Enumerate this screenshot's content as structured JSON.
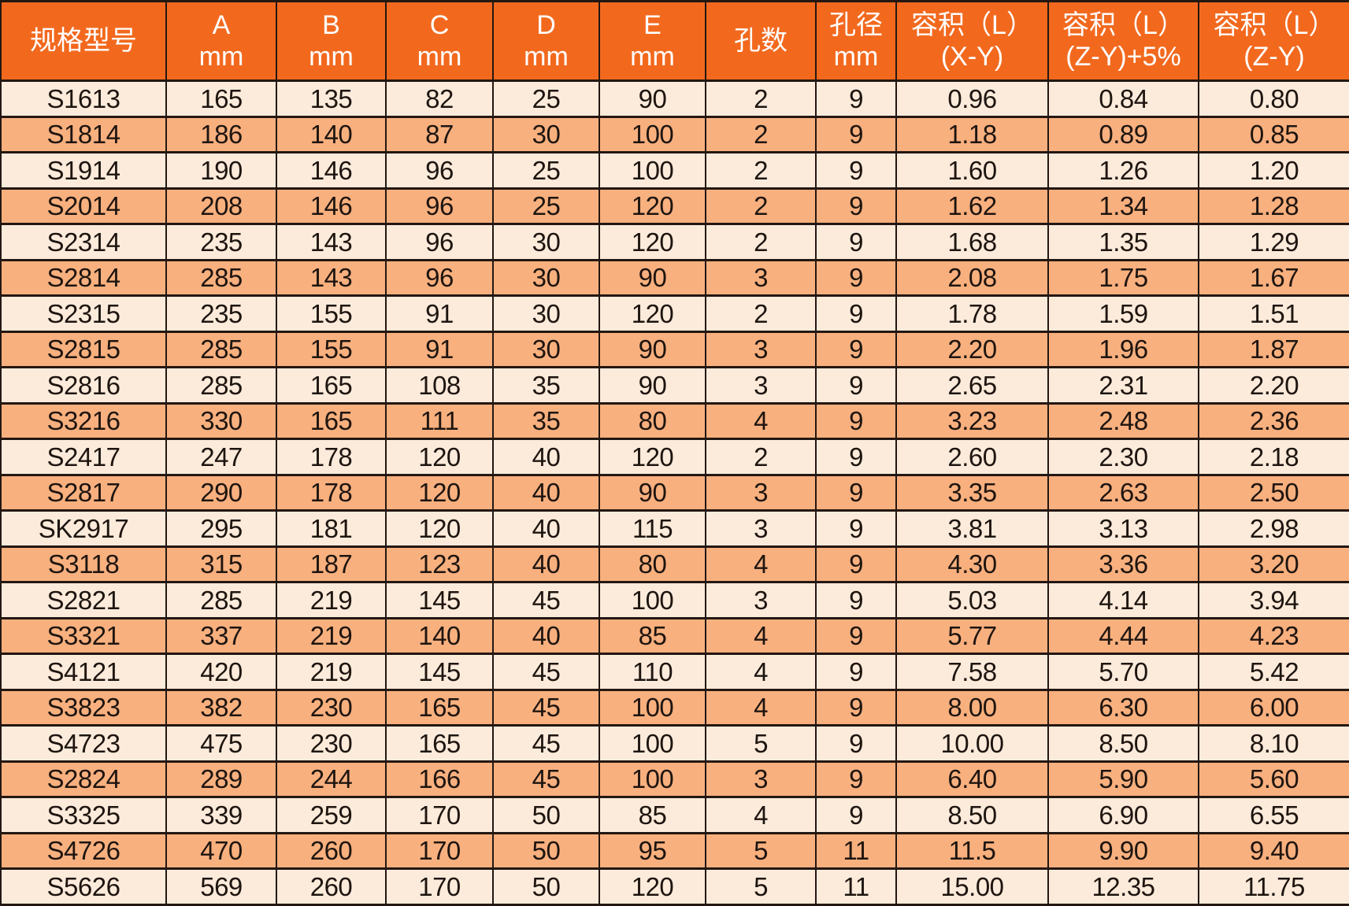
{
  "chart_data": {
    "type": "table",
    "columns": [
      {
        "id": "model",
        "lines": [
          "规格型号"
        ]
      },
      {
        "id": "a_mm",
        "lines": [
          "A",
          "mm"
        ]
      },
      {
        "id": "b_mm",
        "lines": [
          "B",
          "mm"
        ]
      },
      {
        "id": "c_mm",
        "lines": [
          "C",
          "mm"
        ]
      },
      {
        "id": "d_mm",
        "lines": [
          "D",
          "mm"
        ]
      },
      {
        "id": "e_mm",
        "lines": [
          "E",
          "mm"
        ]
      },
      {
        "id": "hole_count",
        "lines": [
          "孔数"
        ]
      },
      {
        "id": "hole_diameter_mm",
        "lines": [
          "孔径",
          "mm"
        ]
      },
      {
        "id": "volume_l_xy",
        "lines": [
          "容积（L）",
          "(X-Y)"
        ]
      },
      {
        "id": "volume_l_zy_plus5",
        "lines": [
          "容积（L）",
          "(Z-Y)+5%"
        ]
      },
      {
        "id": "volume_l_zy",
        "lines": [
          "容积（L）",
          "(Z-Y)"
        ]
      }
    ],
    "rows": [
      [
        "S1613",
        "165",
        "135",
        "82",
        "25",
        "90",
        "2",
        "9",
        "0.96",
        "0.84",
        "0.80"
      ],
      [
        "S1814",
        "186",
        "140",
        "87",
        "30",
        "100",
        "2",
        "9",
        "1.18",
        "0.89",
        "0.85"
      ],
      [
        "S1914",
        "190",
        "146",
        "96",
        "25",
        "100",
        "2",
        "9",
        "1.60",
        "1.26",
        "1.20"
      ],
      [
        "S2014",
        "208",
        "146",
        "96",
        "25",
        "120",
        "2",
        "9",
        "1.62",
        "1.34",
        "1.28"
      ],
      [
        "S2314",
        "235",
        "143",
        "96",
        "30",
        "120",
        "2",
        "9",
        "1.68",
        "1.35",
        "1.29"
      ],
      [
        "S2814",
        "285",
        "143",
        "96",
        "30",
        "90",
        "3",
        "9",
        "2.08",
        "1.75",
        "1.67"
      ],
      [
        "S2315",
        "235",
        "155",
        "91",
        "30",
        "120",
        "2",
        "9",
        "1.78",
        "1.59",
        "1.51"
      ],
      [
        "S2815",
        "285",
        "155",
        "91",
        "30",
        "90",
        "3",
        "9",
        "2.20",
        "1.96",
        "1.87"
      ],
      [
        "S2816",
        "285",
        "165",
        "108",
        "35",
        "90",
        "3",
        "9",
        "2.65",
        "2.31",
        "2.20"
      ],
      [
        "S3216",
        "330",
        "165",
        "111",
        "35",
        "80",
        "4",
        "9",
        "3.23",
        "2.48",
        "2.36"
      ],
      [
        "S2417",
        "247",
        "178",
        "120",
        "40",
        "120",
        "2",
        "9",
        "2.60",
        "2.30",
        "2.18"
      ],
      [
        "S2817",
        "290",
        "178",
        "120",
        "40",
        "90",
        "3",
        "9",
        "3.35",
        "2.63",
        "2.50"
      ],
      [
        "SK2917",
        "295",
        "181",
        "120",
        "40",
        "115",
        "3",
        "9",
        "3.81",
        "3.13",
        "2.98"
      ],
      [
        "S3118",
        "315",
        "187",
        "123",
        "40",
        "80",
        "4",
        "9",
        "4.30",
        "3.36",
        "3.20"
      ],
      [
        "S2821",
        "285",
        "219",
        "145",
        "45",
        "100",
        "3",
        "9",
        "5.03",
        "4.14",
        "3.94"
      ],
      [
        "S3321",
        "337",
        "219",
        "140",
        "40",
        "85",
        "4",
        "9",
        "5.77",
        "4.44",
        "4.23"
      ],
      [
        "S4121",
        "420",
        "219",
        "145",
        "45",
        "110",
        "4",
        "9",
        "7.58",
        "5.70",
        "5.42"
      ],
      [
        "S3823",
        "382",
        "230",
        "165",
        "45",
        "100",
        "4",
        "9",
        "8.00",
        "6.30",
        "6.00"
      ],
      [
        "S4723",
        "475",
        "230",
        "165",
        "45",
        "100",
        "5",
        "9",
        "10.00",
        "8.50",
        "8.10"
      ],
      [
        "S2824",
        "289",
        "244",
        "166",
        "45",
        "100",
        "3",
        "9",
        "6.40",
        "5.90",
        "5.60"
      ],
      [
        "S3325",
        "339",
        "259",
        "170",
        "50",
        "85",
        "4",
        "9",
        "8.50",
        "6.90",
        "6.55"
      ],
      [
        "S4726",
        "470",
        "260",
        "170",
        "50",
        "95",
        "5",
        "11",
        "11.5",
        "9.90",
        "9.40"
      ],
      [
        "S5626",
        "569",
        "260",
        "170",
        "50",
        "120",
        "5",
        "11",
        "15.00",
        "12.35",
        "11.75"
      ]
    ]
  },
  "style": {
    "header_bg": "#F2691E",
    "header_text": "#FFFFFF",
    "row_light_bg": "#FCEBDB",
    "row_dark_bg": "#F8B07E",
    "border_color": "#231712",
    "cell_text": "#1E1510"
  }
}
